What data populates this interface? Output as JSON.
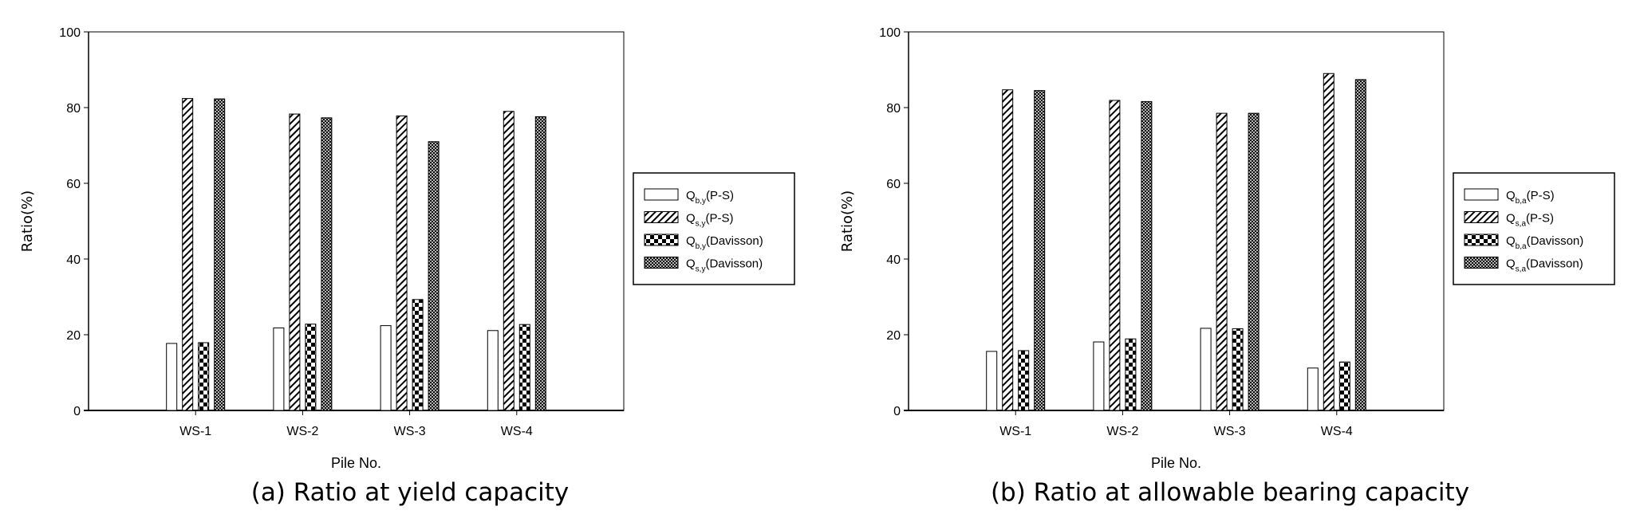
{
  "chart_data": [
    {
      "type": "bar",
      "title": "",
      "caption": "(a) Ratio at yield capacity",
      "xlabel": "Pile No.",
      "ylabel": "Ratio(%)",
      "ylim": [
        0,
        100
      ],
      "yticks": [
        0,
        20,
        40,
        60,
        80,
        100
      ],
      "categories": [
        "WS-1",
        "WS-2",
        "WS-3",
        "WS-4"
      ],
      "legend_position": "right-outside",
      "series": [
        {
          "name": "Qb,y(P-S)",
          "q": "Q",
          "sub": "b,y",
          "suffix": "(P-S)",
          "pattern": "open",
          "values": [
            17.7,
            21.8,
            22.4,
            21.1
          ]
        },
        {
          "name": "Qs,y(P-S)",
          "q": "Q",
          "sub": "s,y",
          "suffix": "(P-S)",
          "pattern": "hatch",
          "values": [
            82.4,
            78.3,
            77.8,
            79.0
          ]
        },
        {
          "name": "Qb,y(Davisson)",
          "q": "Q",
          "sub": "b,y",
          "suffix": "(Davisson)",
          "pattern": "checker",
          "values": [
            17.9,
            22.8,
            29.3,
            22.7
          ]
        },
        {
          "name": "Qs,y(Davisson)",
          "q": "Q",
          "sub": "s,y",
          "suffix": "(Davisson)",
          "pattern": "crosshatch",
          "values": [
            82.3,
            77.3,
            71.0,
            77.6
          ]
        }
      ]
    },
    {
      "type": "bar",
      "title": "",
      "caption": "(b) Ratio at allowable bearing capacity",
      "xlabel": "Pile No.",
      "ylabel": "Ratio(%)",
      "ylim": [
        0,
        100
      ],
      "yticks": [
        0,
        20,
        40,
        60,
        80,
        100
      ],
      "categories": [
        "WS-1",
        "WS-2",
        "WS-3",
        "WS-4"
      ],
      "legend_position": "right-outside",
      "series": [
        {
          "name": "Qb,a(P-S)",
          "q": "Q",
          "sub": "b,a",
          "suffix": "(P-S)",
          "pattern": "open",
          "values": [
            15.6,
            18.1,
            21.7,
            11.2
          ]
        },
        {
          "name": "Qs,a(P-S)",
          "q": "Q",
          "sub": "s,a",
          "suffix": "(P-S)",
          "pattern": "hatch",
          "values": [
            84.7,
            81.9,
            78.5,
            89.0
          ]
        },
        {
          "name": "Qb,a(Davisson)",
          "q": "Q",
          "sub": "b,a",
          "suffix": "(Davisson)",
          "pattern": "checker",
          "values": [
            15.8,
            18.9,
            21.6,
            12.8
          ]
        },
        {
          "name": "Qs,a(Davisson)",
          "q": "Q",
          "sub": "s,a",
          "suffix": "(Davisson)",
          "pattern": "crosshatch",
          "values": [
            84.5,
            81.6,
            78.5,
            87.4
          ]
        }
      ]
    }
  ]
}
